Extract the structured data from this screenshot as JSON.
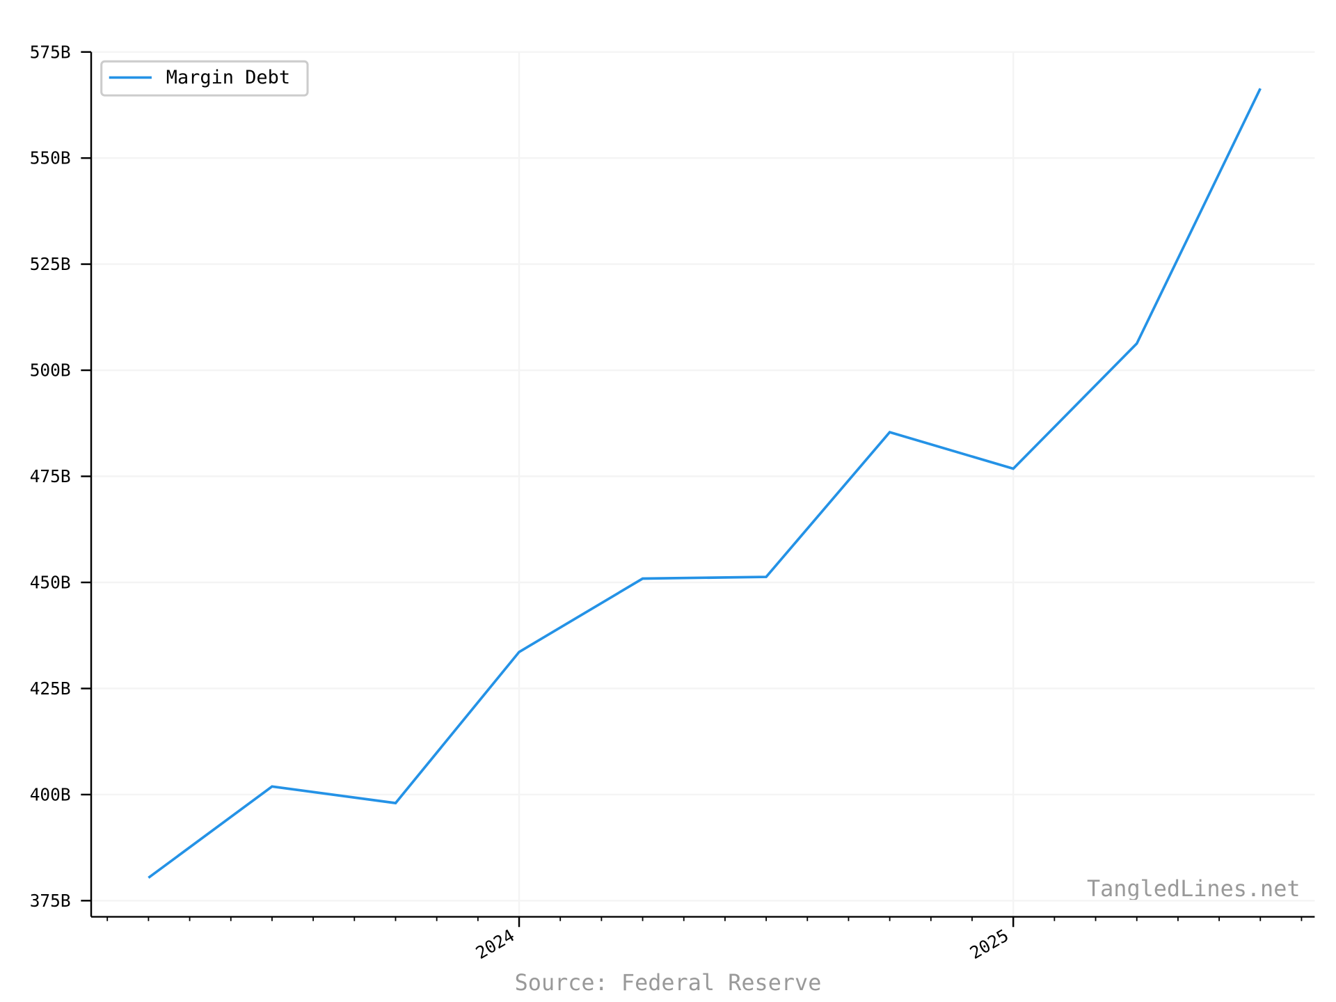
{
  "chart_data": {
    "type": "line",
    "x": [
      2023.25,
      2023.5,
      2023.75,
      2024,
      2024.25,
      2024.5,
      2024.75,
      2025,
      2025.25,
      2025.5
    ],
    "series": [
      {
        "name": "Margin Debt",
        "color": "#2492e6",
        "values": [
          380.4,
          401.9,
          398,
          433.6,
          450.9,
          451.3,
          485.4,
          476.8,
          506.3,
          566.4
        ]
      }
    ],
    "xlim": [
      2023.134,
      2025.61
    ],
    "xticks": [
      2024,
      2025
    ],
    "ylim": [
      371.2,
      575
    ],
    "yticks": [
      {
        "value": 375,
        "label": "375B"
      },
      {
        "value": 400,
        "label": "400B"
      },
      {
        "value": 425,
        "label": "425B"
      },
      {
        "value": 450,
        "label": "450B"
      },
      {
        "value": 475,
        "label": "475B"
      },
      {
        "value": 500,
        "label": "500B"
      },
      {
        "value": 525,
        "label": "525B"
      },
      {
        "value": 550,
        "label": "550B"
      },
      {
        "value": 575,
        "label": "575B"
      }
    ],
    "grid": true,
    "legend": "upper left",
    "source": "Source: Federal Reserve",
    "watermark": "TangledLines.net"
  }
}
